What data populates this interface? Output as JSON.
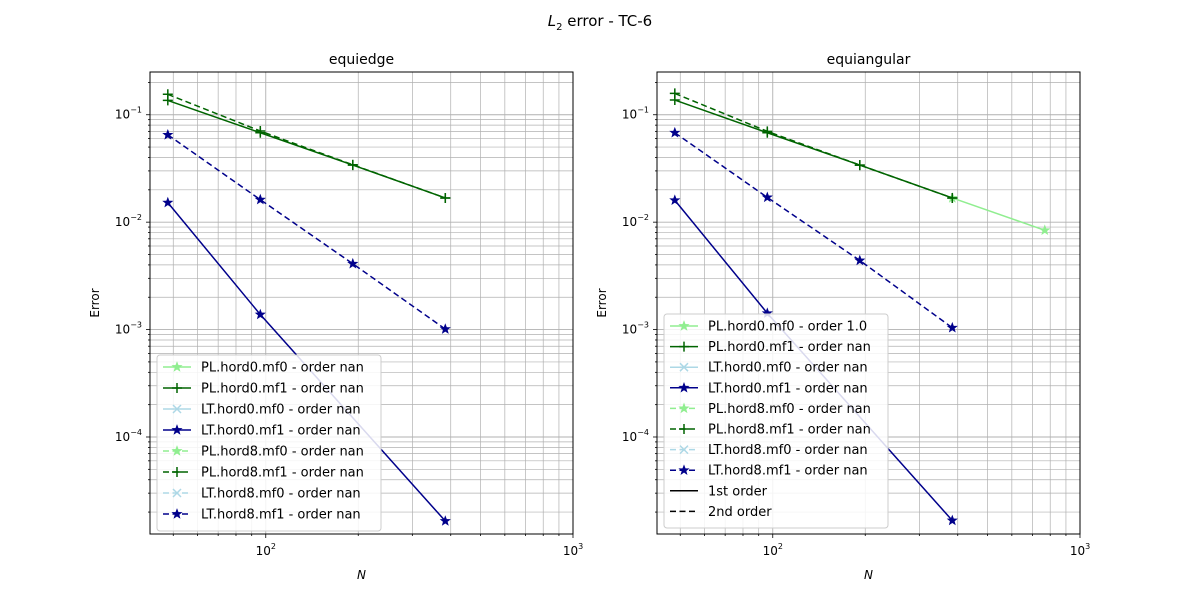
{
  "figure": {
    "title_main": "L",
    "title_sub": "2",
    "title_rest": " error - TC-6"
  },
  "colors": {
    "light_green": "#90ee90",
    "dark_green": "#006400",
    "light_blue": "#add8e6",
    "navy": "#00008b",
    "grid": "#b0b0b0",
    "black": "#000000"
  },
  "chart_data": [
    {
      "type": "line",
      "title": "equiedge",
      "xlabel": "N",
      "ylabel": "Error",
      "x_scale": "log",
      "y_scale": "log",
      "xlim": [
        42,
        1000
      ],
      "ylim": [
        1.25e-05,
        0.25
      ],
      "x_ticks": [
        {
          "value": 100,
          "base": "10",
          "exp": "2"
        },
        {
          "value": 1000,
          "base": "10",
          "exp": "3"
        }
      ],
      "y_ticks": [
        {
          "value": 0.1,
          "base": "10",
          "exp": "−1"
        },
        {
          "value": 0.01,
          "base": "10",
          "exp": "−2"
        },
        {
          "value": 0.001,
          "base": "10",
          "exp": "−3"
        },
        {
          "value": 0.0001,
          "base": "10",
          "exp": "−4"
        }
      ],
      "grid": true,
      "legend_position": "lower-left",
      "series": [
        {
          "name": "PL.hord0.mf0 - order nan",
          "color": "#90ee90",
          "dash": "solid",
          "marker": "star",
          "x": [],
          "y": []
        },
        {
          "name": "PL.hord0.mf1 - order nan",
          "color": "#006400",
          "dash": "solid",
          "marker": "plus",
          "x": [
            48,
            96,
            192,
            384
          ],
          "y": [
            0.136,
            0.068,
            0.034,
            0.0168
          ]
        },
        {
          "name": "LT.hord0.mf0 - order nan",
          "color": "#add8e6",
          "dash": "solid",
          "marker": "x",
          "x": [],
          "y": []
        },
        {
          "name": "LT.hord0.mf1 - order nan",
          "color": "#00008b",
          "dash": "solid",
          "marker": "star",
          "x": [
            48,
            96,
            384
          ],
          "y": [
            0.0152,
            0.00138,
            1.65e-05
          ]
        },
        {
          "name": "PL.hord8.mf0 - order nan",
          "color": "#90ee90",
          "dash": "dashed",
          "marker": "star",
          "x": [],
          "y": []
        },
        {
          "name": "PL.hord8.mf1 - order nan",
          "color": "#006400",
          "dash": "dashed",
          "marker": "plus",
          "x": [
            48,
            96,
            192,
            384
          ],
          "y": [
            0.155,
            0.0705,
            0.0342,
            0.0168
          ]
        },
        {
          "name": "LT.hord8.mf0 - order nan",
          "color": "#add8e6",
          "dash": "dashed",
          "marker": "x",
          "x": [],
          "y": []
        },
        {
          "name": "LT.hord8.mf1 - order nan",
          "color": "#00008b",
          "dash": "dashed",
          "marker": "star",
          "x": [
            48,
            96,
            192,
            384
          ],
          "y": [
            0.065,
            0.0162,
            0.0041,
            0.00101
          ]
        }
      ]
    },
    {
      "type": "line",
      "title": "equiangular",
      "xlabel": "N",
      "ylabel": "Error",
      "x_scale": "log",
      "y_scale": "log",
      "xlim": [
        42,
        1000
      ],
      "ylim": [
        1.25e-05,
        0.25
      ],
      "x_ticks": [
        {
          "value": 100,
          "base": "10",
          "exp": "2"
        },
        {
          "value": 1000,
          "base": "10",
          "exp": "3"
        }
      ],
      "y_ticks": [
        {
          "value": 0.1,
          "base": "10",
          "exp": "−1"
        },
        {
          "value": 0.01,
          "base": "10",
          "exp": "−2"
        },
        {
          "value": 0.001,
          "base": "10",
          "exp": "−3"
        },
        {
          "value": 0.0001,
          "base": "10",
          "exp": "−4"
        }
      ],
      "grid": true,
      "legend_position": "lower-left",
      "series": [
        {
          "name": "PL.hord0.mf0 - order 1.0",
          "color": "#90ee90",
          "dash": "solid",
          "marker": "star",
          "x": [
            384,
            768
          ],
          "y": [
            0.0168,
            0.0084
          ]
        },
        {
          "name": "PL.hord0.mf1 - order nan",
          "color": "#006400",
          "dash": "solid",
          "marker": "plus",
          "x": [
            48,
            96,
            192,
            384
          ],
          "y": [
            0.137,
            0.068,
            0.034,
            0.0168
          ]
        },
        {
          "name": "LT.hord0.mf0 - order nan",
          "color": "#add8e6",
          "dash": "solid",
          "marker": "x",
          "x": [],
          "y": []
        },
        {
          "name": "LT.hord0.mf1 - order nan",
          "color": "#00008b",
          "dash": "solid",
          "marker": "star",
          "x": [
            48,
            96,
            384
          ],
          "y": [
            0.016,
            0.00142,
            1.67e-05
          ]
        },
        {
          "name": "PL.hord8.mf0 - order nan",
          "color": "#90ee90",
          "dash": "dashed",
          "marker": "star",
          "x": [],
          "y": []
        },
        {
          "name": "PL.hord8.mf1 - order nan",
          "color": "#006400",
          "dash": "dashed",
          "marker": "plus",
          "x": [
            48,
            96,
            192,
            384
          ],
          "y": [
            0.158,
            0.07,
            0.034,
            0.0168
          ]
        },
        {
          "name": "LT.hord8.mf0 - order nan",
          "color": "#add8e6",
          "dash": "dashed",
          "marker": "x",
          "x": [],
          "y": []
        },
        {
          "name": "LT.hord8.mf1 - order nan",
          "color": "#00008b",
          "dash": "dashed",
          "marker": "star",
          "x": [
            48,
            96,
            192,
            384
          ],
          "y": [
            0.068,
            0.017,
            0.0044,
            0.00104
          ]
        },
        {
          "name": "1st order",
          "color": "#000000",
          "dash": "solid",
          "marker": "none",
          "x": [],
          "y": []
        },
        {
          "name": "2nd order",
          "color": "#000000",
          "dash": "dashed",
          "marker": "none",
          "x": [],
          "y": []
        }
      ]
    }
  ]
}
